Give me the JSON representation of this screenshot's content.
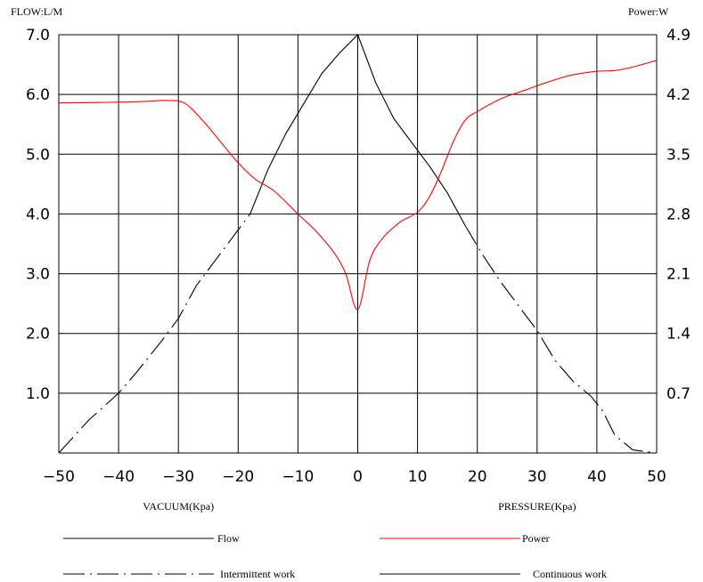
{
  "chart_data": {
    "type": "line",
    "left_axis_title": "FLOW:L/M",
    "right_axis_title": "Power:W",
    "x_ticks": [
      -50,
      -40,
      -30,
      -20,
      -10,
      0,
      10,
      20,
      30,
      40,
      50
    ],
    "x_tick_labels": [
      "−50",
      "−40",
      "−30",
      "−20",
      "−10",
      "0",
      "10",
      "20",
      "30",
      "40",
      "50"
    ],
    "xlim": [
      -50,
      50
    ],
    "y_left_ticks": [
      1.0,
      2.0,
      3.0,
      4.0,
      5.0,
      6.0,
      7.0
    ],
    "y_left_tick_labels": [
      "1.0",
      "2.0",
      "3.0",
      "4.0",
      "5.0",
      "6.0",
      "7.0"
    ],
    "y_left_lim": [
      0,
      7
    ],
    "y_right_ticks": [
      0.7,
      1.4,
      2.1,
      2.8,
      3.5,
      4.2,
      4.9
    ],
    "y_right_tick_labels": [
      "0.7",
      "1.4",
      "2.1",
      "2.8",
      "3.5",
      "4.2",
      "4.9"
    ],
    "y_right_lim": [
      0,
      4.9
    ],
    "grid": true,
    "x_section_labels": [
      {
        "text": "VACUUM(Kpa)",
        "x": -30
      },
      {
        "text": "PRESSURE(Kpa)",
        "x": 30
      }
    ],
    "series": [
      {
        "name": "Flow",
        "axis": "left",
        "color": "#000000",
        "continuous": {
          "x": [
            -18,
            -15,
            -12,
            -9,
            -6,
            -3,
            0,
            3,
            6,
            9,
            12,
            15,
            18
          ],
          "y": [
            4.0,
            4.75,
            5.35,
            5.85,
            6.35,
            6.7,
            7.0,
            6.2,
            5.6,
            5.2,
            4.8,
            4.35,
            3.8
          ]
        },
        "intermittent": [
          {
            "x": [
              -50,
              -45,
              -40,
              -37,
              -33,
              -30,
              -27,
              -24,
              -21,
              -18
            ],
            "y": [
              0.0,
              0.55,
              1.0,
              1.35,
              1.85,
              2.25,
              2.8,
              3.2,
              3.6,
              4.0
            ]
          },
          {
            "x": [
              18,
              21,
              24,
              27,
              30,
              33,
              36,
              39,
              41,
              43,
              46,
              50
            ],
            "y": [
              3.8,
              3.3,
              2.85,
              2.45,
              2.05,
              1.55,
              1.2,
              0.95,
              0.7,
              0.3,
              0.05,
              0.0
            ]
          }
        ]
      },
      {
        "name": "Power",
        "axis": "right",
        "color": "#ff0000",
        "x": [
          -50,
          -40,
          -35,
          -32,
          -29,
          -26,
          -23,
          -20,
          -17,
          -14,
          -10,
          -7,
          -4,
          -2,
          0,
          2,
          4,
          7,
          10,
          12,
          14,
          16,
          18,
          20,
          24,
          28,
          32,
          36,
          40,
          43,
          46,
          50
        ],
        "y": [
          4.1,
          4.11,
          4.12,
          4.13,
          4.1,
          3.9,
          3.65,
          3.4,
          3.2,
          3.07,
          2.8,
          2.6,
          2.35,
          2.1,
          1.68,
          2.25,
          2.5,
          2.7,
          2.82,
          3.0,
          3.3,
          3.65,
          3.9,
          4.0,
          4.15,
          4.25,
          4.35,
          4.43,
          4.47,
          4.48,
          4.52,
          4.6
        ]
      }
    ],
    "legend": [
      {
        "label": "Flow",
        "style": "solid",
        "color": "#000000"
      },
      {
        "label": "Power",
        "style": "solid",
        "color": "#ff0000"
      },
      {
        "label": "Intermittent work",
        "style": "dash-dot",
        "color": "#000000"
      },
      {
        "label": "Continuous work",
        "style": "solid",
        "color": "#000000"
      }
    ]
  }
}
